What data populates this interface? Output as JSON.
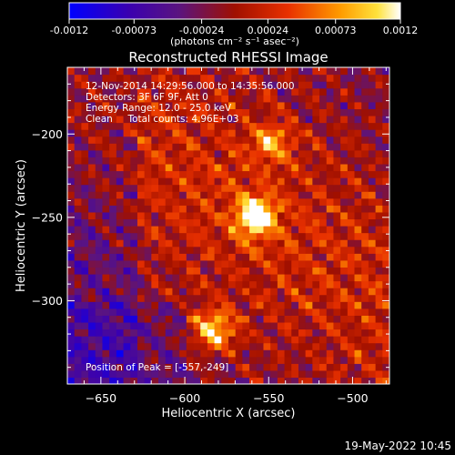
{
  "colorbar": {
    "ticks": [
      "-0.0012",
      "-0.00073",
      "-0.00024",
      "0.00024",
      "0.00073",
      "0.0012"
    ],
    "tick_values": [
      -0.0012,
      -0.00073,
      -0.00024,
      0.00024,
      0.00073,
      0.0012
    ],
    "range": [
      -0.0012,
      0.0012
    ],
    "unit_label": "(photons cm⁻² s⁻¹ asec⁻²)",
    "colormap": "blue-purple-red-yellow-white (RHESSI)"
  },
  "chart_data": {
    "type": "heatmap",
    "title": "Reconstructed RHESSI Image",
    "xlabel": "Heliocentric X (arcsec)",
    "ylabel": "Heliocentric Y (arcsec)",
    "xlim": [
      -670,
      -478
    ],
    "ylim": [
      -350,
      -160
    ],
    "xticks": [
      -650,
      -600,
      -550,
      -500
    ],
    "yticks": [
      -200,
      -250,
      -300
    ],
    "xtick_labels": [
      "−650",
      "−600",
      "−550",
      "−500"
    ],
    "ytick_labels": [
      "−200",
      "−250",
      "−300"
    ],
    "peak": [
      -557,
      -249
    ],
    "bright_sources": [
      {
        "x": -557,
        "y": -249,
        "intensity": 1.0
      },
      {
        "x": -583,
        "y": -317,
        "intensity": 0.82
      },
      {
        "x": -548,
        "y": -205,
        "intensity": 0.55
      }
    ],
    "annotations": [
      "12-Nov-2014 14:29:56.000 to 14:35:56.000",
      "Detectors: 3F 6F 9F, Att 0",
      "Energy Range: 12.0 - 25.0 keV",
      "Clean     Total counts: 4.96E+03",
      "Position of Peak = [-557,-249]"
    ],
    "grid": false
  },
  "footer": {
    "timestamp": "19-May-2022 10:45"
  }
}
